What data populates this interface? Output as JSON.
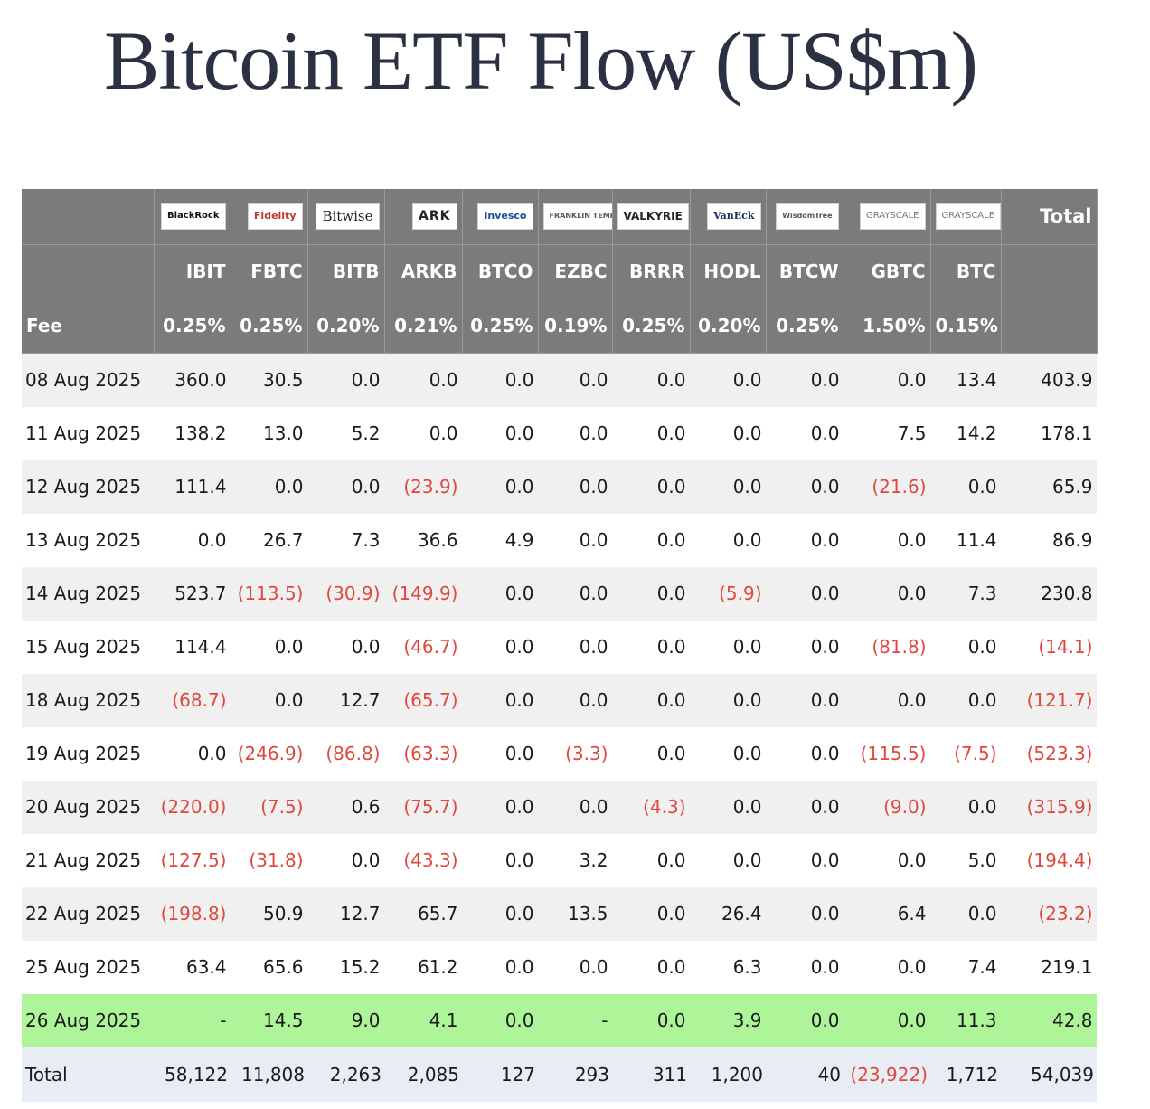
{
  "title": "Bitcoin ETF Flow (US$m)",
  "colors": {
    "header_bg": "#7b7b7b",
    "negative": "#e0483d",
    "highlight_row": "#aef59a",
    "total_row": "#e8ecf5"
  },
  "issuers": [
    "BlackRock",
    "Fidelity",
    "Bitwise",
    "ARK",
    "Invesco",
    "FRANKLIN TEMPLETON",
    "VALKYRIE",
    "VanEck",
    "WisdomTree",
    "GRAYSCALE",
    "GRAYSCALE"
  ],
  "total_label": "Total",
  "tickers": [
    "IBIT",
    "FBTC",
    "BITB",
    "ARKB",
    "BTCO",
    "EZBC",
    "BRRR",
    "HODL",
    "BTCW",
    "GBTC",
    "BTC"
  ],
  "fee_label": "Fee",
  "fees": [
    "0.25%",
    "0.25%",
    "0.20%",
    "0.21%",
    "0.25%",
    "0.19%",
    "0.25%",
    "0.20%",
    "0.25%",
    "1.50%",
    "0.15%"
  ],
  "rows": [
    [
      "08 Aug 2025",
      "360.0",
      "30.5",
      "0.0",
      "0.0",
      "0.0",
      "0.0",
      "0.0",
      "0.0",
      "0.0",
      "0.0",
      "13.4",
      "403.9"
    ],
    [
      "11 Aug 2025",
      "138.2",
      "13.0",
      "5.2",
      "0.0",
      "0.0",
      "0.0",
      "0.0",
      "0.0",
      "0.0",
      "7.5",
      "14.2",
      "178.1"
    ],
    [
      "12 Aug 2025",
      "111.4",
      "0.0",
      "0.0",
      "(23.9)",
      "0.0",
      "0.0",
      "0.0",
      "0.0",
      "0.0",
      "(21.6)",
      "0.0",
      "65.9"
    ],
    [
      "13 Aug 2025",
      "0.0",
      "26.7",
      "7.3",
      "36.6",
      "4.9",
      "0.0",
      "0.0",
      "0.0",
      "0.0",
      "0.0",
      "11.4",
      "86.9"
    ],
    [
      "14 Aug 2025",
      "523.7",
      "(113.5)",
      "(30.9)",
      "(149.9)",
      "0.0",
      "0.0",
      "0.0",
      "(5.9)",
      "0.0",
      "0.0",
      "7.3",
      "230.8"
    ],
    [
      "15 Aug 2025",
      "114.4",
      "0.0",
      "0.0",
      "(46.7)",
      "0.0",
      "0.0",
      "0.0",
      "0.0",
      "0.0",
      "(81.8)",
      "0.0",
      "(14.1)"
    ],
    [
      "18 Aug 2025",
      "(68.7)",
      "0.0",
      "12.7",
      "(65.7)",
      "0.0",
      "0.0",
      "0.0",
      "0.0",
      "0.0",
      "0.0",
      "0.0",
      "(121.7)"
    ],
    [
      "19 Aug 2025",
      "0.0",
      "(246.9)",
      "(86.8)",
      "(63.3)",
      "0.0",
      "(3.3)",
      "0.0",
      "0.0",
      "0.0",
      "(115.5)",
      "(7.5)",
      "(523.3)"
    ],
    [
      "20 Aug 2025",
      "(220.0)",
      "(7.5)",
      "0.6",
      "(75.7)",
      "0.0",
      "0.0",
      "(4.3)",
      "0.0",
      "0.0",
      "(9.0)",
      "0.0",
      "(315.9)"
    ],
    [
      "21 Aug 2025",
      "(127.5)",
      "(31.8)",
      "0.0",
      "(43.3)",
      "0.0",
      "3.2",
      "0.0",
      "0.0",
      "0.0",
      "0.0",
      "5.0",
      "(194.4)"
    ],
    [
      "22 Aug 2025",
      "(198.8)",
      "50.9",
      "12.7",
      "65.7",
      "0.0",
      "13.5",
      "0.0",
      "26.4",
      "0.0",
      "6.4",
      "0.0",
      "(23.2)"
    ],
    [
      "25 Aug 2025",
      "63.4",
      "65.6",
      "15.2",
      "61.2",
      "0.0",
      "0.0",
      "0.0",
      "6.3",
      "0.0",
      "0.0",
      "7.4",
      "219.1"
    ],
    [
      "26 Aug 2025",
      "-",
      "14.5",
      "9.0",
      "4.1",
      "0.0",
      "-",
      "0.0",
      "3.9",
      "0.0",
      "0.0",
      "11.3",
      "42.8"
    ]
  ],
  "totals": [
    "Total",
    "58,122",
    "11,808",
    "2,263",
    "2,085",
    "127",
    "293",
    "311",
    "1,200",
    "40",
    "(23,922)",
    "1,712",
    "54,039"
  ]
}
